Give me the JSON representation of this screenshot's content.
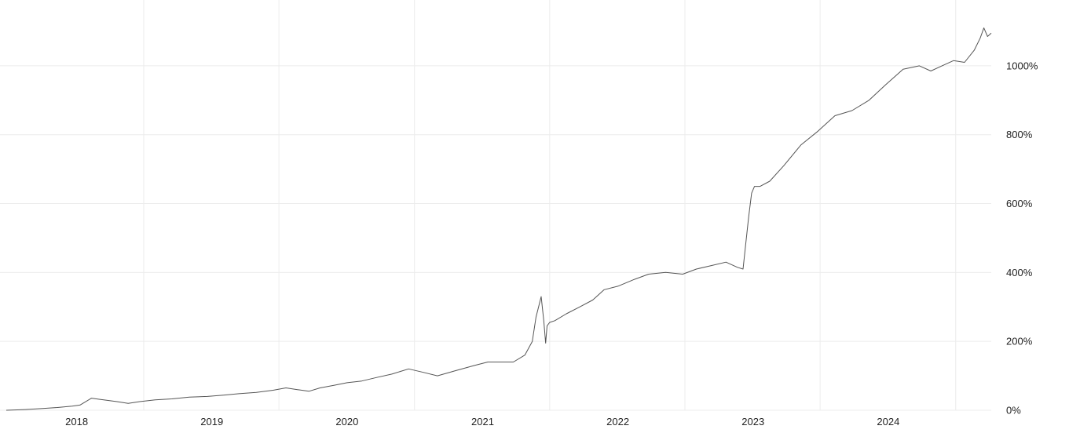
{
  "chart_data": {
    "type": "line",
    "title": "",
    "xlabel": "",
    "ylabel": "",
    "y_unit": "%",
    "grid": true,
    "legend": "none",
    "colors": {
      "line": "#555555",
      "grid": "#ececec",
      "text": "#222222"
    },
    "xlim": [
      "2017-06-25",
      "2024-10-05"
    ],
    "ylim": [
      0,
      1150
    ],
    "x_ticks": [
      {
        "label": "2018",
        "date": "2018-01-01"
      },
      {
        "label": "2019",
        "date": "2019-01-01"
      },
      {
        "label": "2020",
        "date": "2020-01-01"
      },
      {
        "label": "2021",
        "date": "2021-01-01"
      },
      {
        "label": "2022",
        "date": "2022-01-01"
      },
      {
        "label": "2023",
        "date": "2023-01-01"
      },
      {
        "label": "2024",
        "date": "2024-01-01"
      }
    ],
    "y_ticks": [
      {
        "label": "0%",
        "value": 0
      },
      {
        "label": "200%",
        "value": 200
      },
      {
        "label": "400%",
        "value": 400
      },
      {
        "label": "600%",
        "value": 600
      },
      {
        "label": "800%",
        "value": 800
      },
      {
        "label": "1000%",
        "value": 1000
      }
    ],
    "series": [
      {
        "x": [
          "2017-06-25",
          "2017-08-15",
          "2017-10-01",
          "2017-11-10",
          "2017-12-20",
          "2018-01-10",
          "2018-02-10",
          "2018-03-15",
          "2018-04-20",
          "2018-05-20",
          "2018-06-20",
          "2018-08-01",
          "2018-09-15",
          "2018-11-01",
          "2018-12-20",
          "2019-02-01",
          "2019-03-15",
          "2019-05-01",
          "2019-06-15",
          "2019-07-20",
          "2019-08-20",
          "2019-09-20",
          "2019-10-20",
          "2019-11-25",
          "2020-01-01",
          "2020-02-10",
          "2020-03-20",
          "2020-05-01",
          "2020-06-15",
          "2020-07-25",
          "2020-09-01",
          "2020-10-20",
          "2020-12-10",
          "2021-01-15",
          "2021-02-25",
          "2021-03-25",
          "2021-04-25",
          "2021-05-15",
          "2021-05-25",
          "2021-06-08",
          "2021-06-15",
          "2021-06-20",
          "2021-06-24",
          "2021-07-01",
          "2021-07-15",
          "2021-08-15",
          "2021-09-20",
          "2021-10-25",
          "2021-11-25",
          "2022-01-01",
          "2022-02-15",
          "2022-03-25",
          "2022-05-10",
          "2022-06-25",
          "2022-08-01",
          "2022-09-10",
          "2022-10-20",
          "2022-11-20",
          "2022-12-05",
          "2022-12-12",
          "2022-12-20",
          "2022-12-28",
          "2023-01-05",
          "2023-01-20",
          "2023-02-15",
          "2023-03-25",
          "2023-05-10",
          "2023-06-25",
          "2023-08-10",
          "2023-09-25",
          "2023-11-10",
          "2023-12-25",
          "2024-02-10",
          "2024-03-25",
          "2024-04-25",
          "2024-05-25",
          "2024-06-25",
          "2024-07-25",
          "2024-08-20",
          "2024-09-05",
          "2024-09-15",
          "2024-09-25",
          "2024-10-05"
        ],
        "y": [
          0,
          2,
          5,
          8,
          12,
          15,
          35,
          30,
          25,
          20,
          25,
          30,
          33,
          38,
          40,
          44,
          48,
          52,
          58,
          65,
          60,
          55,
          65,
          72,
          80,
          85,
          95,
          105,
          120,
          110,
          100,
          115,
          130,
          140,
          140,
          140,
          160,
          200,
          270,
          330,
          260,
          195,
          245,
          255,
          260,
          280,
          300,
          320,
          350,
          360,
          380,
          395,
          400,
          395,
          410,
          420,
          430,
          415,
          410,
          480,
          560,
          630,
          650,
          650,
          665,
          710,
          770,
          810,
          855,
          870,
          900,
          945,
          990,
          1000,
          985,
          1000,
          1015,
          1010,
          1045,
          1080,
          1110,
          1085,
          1095
        ]
      }
    ]
  }
}
